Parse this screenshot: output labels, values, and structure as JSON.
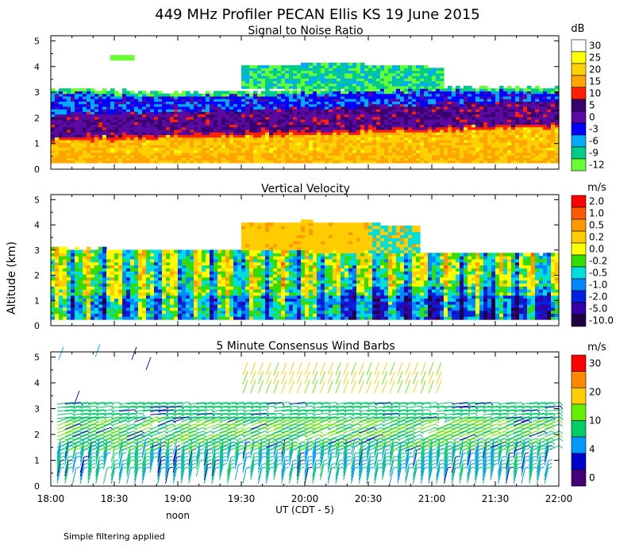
{
  "title": "449 MHz Profiler PECAN Ellis KS 19 June 2015",
  "ylabel": "Altitude (km)",
  "xlabel": "UT  (CDT - 5)",
  "x_ticks": [
    "18:00",
    "18:30",
    "19:00",
    "19:30",
    "20:00",
    "20:30",
    "21:00",
    "21:30",
    "22:00"
  ],
  "noon_label": "noon",
  "footer": "Simple filtering applied",
  "chart_data": [
    {
      "type": "heatmap",
      "title": "Signal to Noise Ratio",
      "ylim": [
        0,
        5
      ],
      "y_ticks": [
        "0",
        "1",
        "2",
        "3",
        "4",
        "5"
      ],
      "xlim": [
        "18:00",
        "22:00"
      ],
      "colorbar": {
        "unit": "dB",
        "labels": [
          "30",
          "25",
          "20",
          "15",
          "10",
          "5",
          "0",
          "-3",
          "-6",
          "-9",
          "-12"
        ],
        "colors": [
          "#ffffff",
          "#ffff00",
          "#ffd000",
          "#ffa500",
          "#ff2000",
          "#3a0070",
          "#5a0aa0",
          "#0000ff",
          "#00aaff",
          "#00cc88",
          "#66ff33"
        ]
      }
    },
    {
      "type": "heatmap",
      "title": "Vertical Velocity",
      "ylim": [
        0,
        5
      ],
      "y_ticks": [
        "0",
        "1",
        "2",
        "3",
        "4",
        "5"
      ],
      "xlim": [
        "18:00",
        "22:00"
      ],
      "colorbar": {
        "unit": "m/s",
        "labels": [
          "2.0",
          "1.0",
          "0.5",
          "0.2",
          "0.0",
          "-0.2",
          "-0.5",
          "-1.0",
          "-2.0",
          "-5.0",
          "-10.0"
        ],
        "colors": [
          "#ff0000",
          "#ff5a00",
          "#ff9900",
          "#ffcc00",
          "#ffff00",
          "#33dd00",
          "#00dddd",
          "#0088ff",
          "#0022dd",
          "#3300aa",
          "#220044"
        ]
      }
    },
    {
      "type": "scatter",
      "title": "5 Minute Consensus Wind Barbs",
      "ylim": [
        0,
        5
      ],
      "y_ticks": [
        "0",
        "1",
        "2",
        "3",
        "4",
        "5"
      ],
      "xlim": [
        "18:00",
        "22:00"
      ],
      "colorbar": {
        "unit": "m/s",
        "labels": [
          "30",
          "20",
          "10",
          "4",
          "0"
        ],
        "colors": [
          "#ff0000",
          "#ff8800",
          "#ffcc00",
          "#66ee00",
          "#00cc66",
          "#0099ff",
          "#0000cc",
          "#440077"
        ]
      }
    }
  ]
}
